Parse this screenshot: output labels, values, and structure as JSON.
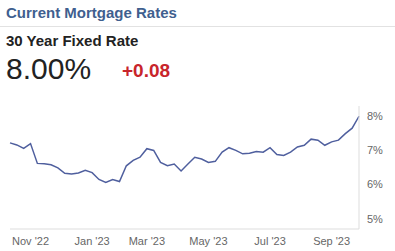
{
  "chart_data": {
    "type": "line",
    "title": "Current Mortgage Rates",
    "subtitle": "30 Year Fixed Rate",
    "annotations": [
      "8.00%",
      "+0.08"
    ],
    "categories": [
      null,
      null,
      null,
      "Nov '22",
      null,
      null,
      null,
      null,
      null,
      null,
      null,
      null,
      "Jan '23",
      null,
      null,
      null,
      null,
      null,
      null,
      null,
      "Mar '23",
      null,
      null,
      null,
      null,
      null,
      null,
      null,
      null,
      "May '23",
      null,
      null,
      null,
      null,
      null,
      null,
      null,
      null,
      "Jul '23",
      null,
      null,
      null,
      null,
      null,
      null,
      null,
      null,
      "Sep '23",
      null,
      null,
      null,
      null
    ],
    "series": [
      {
        "name": "30 Year Fixed Rate",
        "color": "#4f5f9e",
        "values": [
          7.22,
          7.16,
          7.06,
          7.2,
          6.62,
          6.61,
          6.58,
          6.49,
          6.33,
          6.31,
          6.34,
          6.42,
          6.35,
          6.15,
          6.06,
          6.15,
          6.09,
          6.55,
          6.71,
          6.8,
          7.05,
          7.0,
          6.65,
          6.55,
          6.6,
          6.4,
          6.6,
          6.8,
          6.75,
          6.65,
          6.68,
          6.95,
          7.08,
          7.0,
          6.9,
          6.92,
          6.97,
          6.95,
          7.08,
          6.88,
          6.85,
          6.95,
          7.1,
          7.15,
          7.33,
          7.3,
          7.15,
          7.25,
          7.3,
          7.49,
          7.65,
          8.0
        ]
      }
    ],
    "ylim": [
      4.7,
      8.3
    ],
    "yticks": [
      {
        "value": 5,
        "label": "5%"
      },
      {
        "value": 6,
        "label": "6%"
      },
      {
        "value": 7,
        "label": "7%"
      },
      {
        "value": 8,
        "label": "8%"
      }
    ]
  }
}
